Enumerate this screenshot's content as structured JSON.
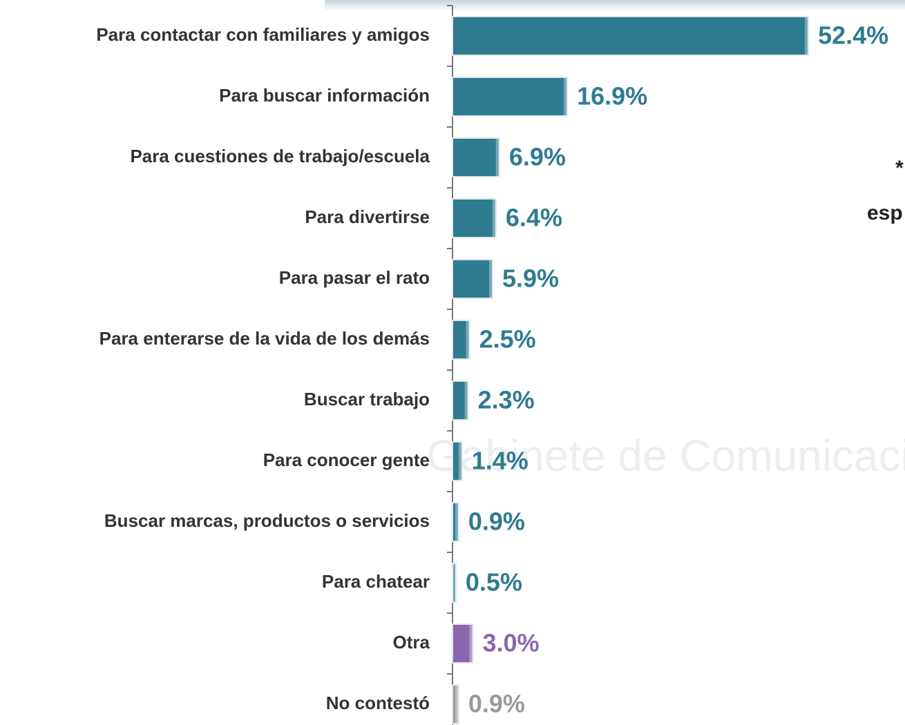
{
  "chart_data": {
    "type": "bar",
    "orientation": "horizontal",
    "categories": [
      "Para contactar con familiares y amigos",
      "Para buscar información",
      "Para cuestiones de trabajo/escuela",
      "Para divertirse",
      "Para pasar el rato",
      "Para enterarse de la vida de los demás",
      "Buscar trabajo",
      "Para conocer gente",
      "Buscar marcas, productos o servicios",
      "Para chatear",
      "Otra",
      "No contestó"
    ],
    "values": [
      52.4,
      16.9,
      6.9,
      6.4,
      5.9,
      2.5,
      2.3,
      1.4,
      0.9,
      0.5,
      3.0,
      0.9
    ],
    "value_labels": [
      "52.4%",
      "16.9%",
      "6.9%",
      "6.4%",
      "5.9%",
      "2.5%",
      "2.3%",
      "1.4%",
      "0.9%",
      "0.5%",
      "3.0%",
      "0.9%"
    ],
    "colors": [
      "#2f7b90",
      "#2f7b90",
      "#2f7b90",
      "#2f7b90",
      "#2f7b90",
      "#2f7b90",
      "#2f7b90",
      "#2f7b90",
      "#2f7b90",
      "#2f7b90",
      "#8a67ad",
      "#9a9a9a"
    ],
    "annotations": [
      "*",
      "esp"
    ],
    "watermark": "Gabinete de Comunicación Estratégica"
  }
}
